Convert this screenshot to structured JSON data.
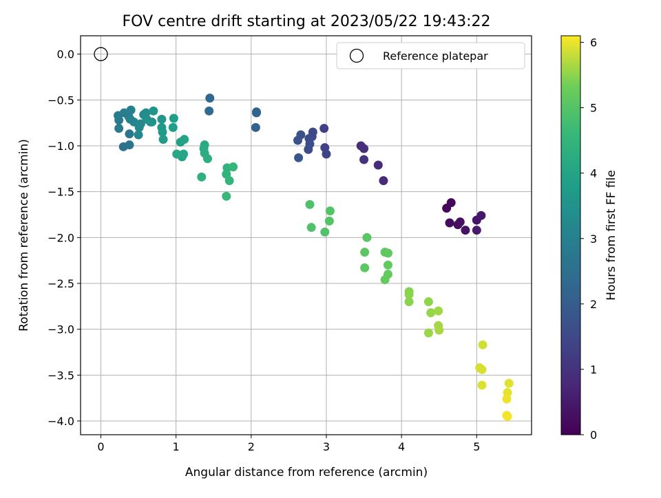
{
  "chart_data": {
    "type": "scatter",
    "title": "FOV centre drift starting at 2023/05/22 19:43:22",
    "xlabel": "Angular distance from reference (arcmin)",
    "ylabel": "Rotation from reference (arcmin)",
    "xlim": [
      -0.27,
      5.73
    ],
    "ylim": [
      -4.15,
      0.2
    ],
    "xticks": [
      0,
      1,
      2,
      3,
      4,
      5
    ],
    "yticks": [
      0.0,
      -0.5,
      -1.0,
      -1.5,
      -2.0,
      -2.5,
      -3.0,
      -3.5,
      -4.0
    ],
    "xtick_labels": [
      "0",
      "1",
      "2",
      "3",
      "4",
      "5"
    ],
    "ytick_labels": [
      "0.0",
      "−0.5",
      "−1.0",
      "−1.5",
      "−2.0",
      "−2.5",
      "−3.0",
      "−3.5",
      "−4.0"
    ],
    "grid": true,
    "legend": {
      "placement": "top-right",
      "entries": [
        "Reference platepar"
      ]
    },
    "reference": {
      "x": 0.0,
      "y": 0.0
    },
    "colorbar": {
      "label": "Hours from first FF file",
      "range": [
        0,
        6.1
      ],
      "ticks": [
        0,
        1,
        2,
        3,
        4,
        5,
        6
      ],
      "tick_labels": [
        "0",
        "1",
        "2",
        "3",
        "4",
        "5",
        "6"
      ],
      "colormap": "viridis"
    },
    "points": [
      [
        4.6,
        -1.68,
        0.1
      ],
      [
        4.66,
        -1.62,
        0.15
      ],
      [
        4.64,
        -1.84,
        0.2
      ],
      [
        4.75,
        -1.86,
        0.25
      ],
      [
        4.78,
        -1.83,
        0.3
      ],
      [
        4.85,
        -1.92,
        0.35
      ],
      [
        5.0,
        -1.81,
        0.4
      ],
      [
        5.06,
        -1.76,
        0.45
      ],
      [
        5.0,
        -1.92,
        0.5
      ],
      [
        3.76,
        -1.38,
        0.8
      ],
      [
        3.69,
        -1.21,
        0.85
      ],
      [
        3.46,
        -1.0,
        0.9
      ],
      [
        3.5,
        -1.03,
        0.95
      ],
      [
        3.5,
        -1.15,
        1.0
      ],
      [
        2.97,
        -0.81,
        1.3
      ],
      [
        2.98,
        -1.02,
        1.35
      ],
      [
        3.0,
        -1.09,
        1.4
      ],
      [
        2.82,
        -0.85,
        1.45
      ],
      [
        2.81,
        -0.9,
        1.5
      ],
      [
        2.77,
        -0.92,
        1.55
      ],
      [
        2.76,
        -1.04,
        1.6
      ],
      [
        2.78,
        -0.98,
        1.65
      ],
      [
        2.66,
        -0.88,
        1.7
      ],
      [
        2.62,
        -0.94,
        1.75
      ],
      [
        2.63,
        -1.13,
        1.8
      ],
      [
        2.06,
        -0.8,
        2.1
      ],
      [
        2.07,
        -0.64,
        2.15
      ],
      [
        2.07,
        -0.63,
        2.2
      ],
      [
        1.45,
        -0.48,
        2.3
      ],
      [
        1.44,
        -0.62,
        2.35
      ],
      [
        0.3,
        -1.01,
        2.6
      ],
      [
        0.38,
        -0.99,
        2.65
      ],
      [
        0.38,
        -0.87,
        2.7
      ],
      [
        0.23,
        -0.67,
        2.75
      ],
      [
        0.24,
        -0.72,
        2.8
      ],
      [
        0.24,
        -0.81,
        2.85
      ],
      [
        0.31,
        -0.64,
        2.9
      ],
      [
        0.37,
        -0.68,
        2.95
      ],
      [
        0.4,
        -0.61,
        3.0
      ],
      [
        0.39,
        -0.71,
        3.05
      ],
      [
        0.44,
        -0.74,
        3.1
      ],
      [
        0.5,
        -0.88,
        3.15
      ],
      [
        0.51,
        -0.8,
        3.2
      ],
      [
        0.53,
        -0.76,
        3.25
      ],
      [
        0.57,
        -0.66,
        3.3
      ],
      [
        0.6,
        -0.64,
        3.35
      ],
      [
        0.61,
        -0.71,
        3.4
      ],
      [
        0.66,
        -0.74,
        3.45
      ],
      [
        0.68,
        -0.74,
        3.5
      ],
      [
        0.7,
        -0.62,
        3.55
      ],
      [
        0.81,
        -0.71,
        3.6
      ],
      [
        0.81,
        -0.8,
        3.65
      ],
      [
        0.82,
        -0.85,
        3.7
      ],
      [
        0.83,
        -0.93,
        3.75
      ],
      [
        0.96,
        -0.8,
        3.8
      ],
      [
        0.97,
        -0.7,
        3.85
      ],
      [
        1.06,
        -0.96,
        3.9
      ],
      [
        1.08,
        -1.12,
        3.95
      ],
      [
        1.11,
        -0.93,
        4.0
      ],
      [
        1.1,
        -1.09,
        4.05
      ],
      [
        1.01,
        -1.09,
        4.1
      ],
      [
        1.38,
        -0.99,
        4.15
      ],
      [
        1.37,
        -1.03,
        4.2
      ],
      [
        1.38,
        -1.08,
        4.25
      ],
      [
        1.42,
        -1.14,
        4.3
      ],
      [
        1.34,
        -1.34,
        4.35
      ],
      [
        1.68,
        -1.24,
        4.4
      ],
      [
        1.67,
        -1.31,
        4.45
      ],
      [
        1.71,
        -1.38,
        4.5
      ],
      [
        1.76,
        -1.23,
        4.55
      ],
      [
        1.67,
        -1.55,
        4.6
      ],
      [
        2.78,
        -1.64,
        4.9
      ],
      [
        2.8,
        -1.89,
        4.92
      ],
      [
        2.98,
        -1.94,
        4.95
      ],
      [
        3.05,
        -1.71,
        4.97
      ],
      [
        3.04,
        -1.82,
        5.0
      ],
      [
        3.54,
        -2.0,
        5.05
      ],
      [
        3.51,
        -2.16,
        5.08
      ],
      [
        3.51,
        -2.33,
        5.1
      ],
      [
        3.78,
        -2.16,
        5.12
      ],
      [
        3.82,
        -2.17,
        5.15
      ],
      [
        3.82,
        -2.3,
        5.18
      ],
      [
        3.82,
        -2.4,
        5.2
      ],
      [
        3.78,
        -2.46,
        5.22
      ],
      [
        4.1,
        -2.59,
        5.45
      ],
      [
        4.1,
        -2.62,
        5.48
      ],
      [
        4.1,
        -2.7,
        5.5
      ],
      [
        4.36,
        -2.7,
        5.52
      ],
      [
        4.39,
        -2.82,
        5.55
      ],
      [
        4.36,
        -3.04,
        5.58
      ],
      [
        4.49,
        -2.8,
        5.6
      ],
      [
        4.49,
        -2.96,
        5.62
      ],
      [
        4.5,
        -3.01,
        5.65
      ],
      [
        5.08,
        -3.17,
        5.85
      ],
      [
        5.04,
        -3.42,
        5.88
      ],
      [
        5.07,
        -3.44,
        5.9
      ],
      [
        5.07,
        -3.61,
        5.92
      ],
      [
        5.43,
        -3.59,
        5.95
      ],
      [
        5.41,
        -3.69,
        5.98
      ],
      [
        5.4,
        -3.76,
        6.0
      ],
      [
        5.4,
        -3.94,
        6.02
      ],
      [
        5.41,
        -3.95,
        6.05
      ]
    ]
  }
}
